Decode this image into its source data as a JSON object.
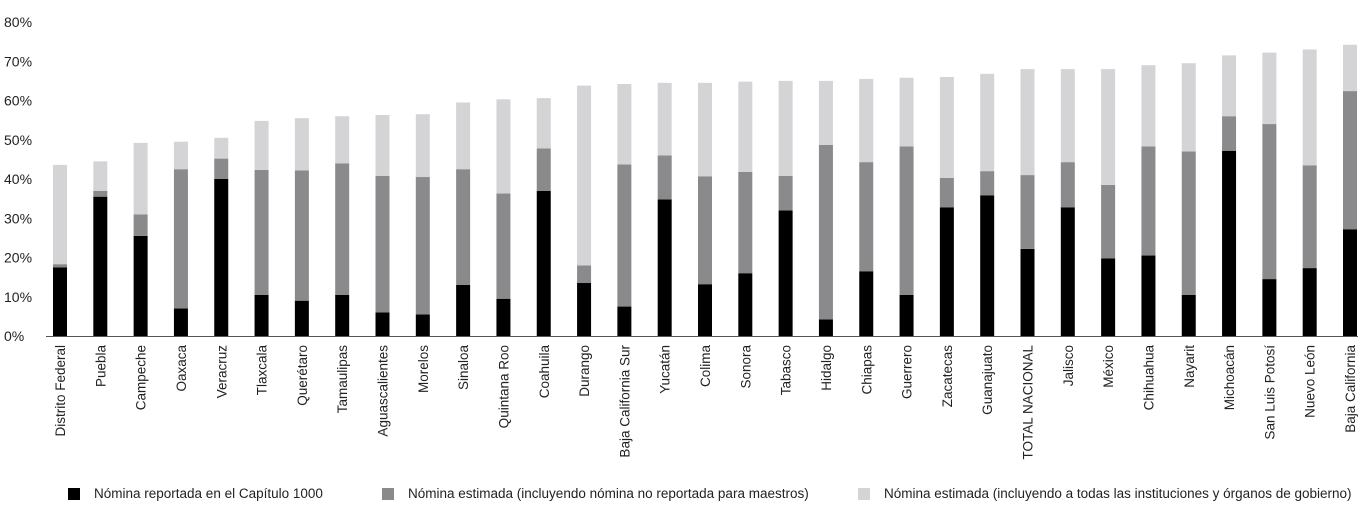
{
  "colors": {
    "reported": "#000000",
    "estimated_teachers": "#8a8a8c",
    "estimated_all": "#d4d4d6",
    "axis": "#555555"
  },
  "chart_data": {
    "type": "bar",
    "stacked": true,
    "title": "",
    "xlabel": "",
    "ylabel": "",
    "ylim": [
      0,
      80
    ],
    "y_ticks": [
      "0%",
      "10%",
      "20%",
      "30%",
      "40%",
      "50%",
      "60%",
      "70%",
      "80%"
    ],
    "grid": false,
    "legend_position": "bottom",
    "categories": [
      "Distrito Federal",
      "Puebla",
      "Campeche",
      "Oaxaca",
      "Veracruz",
      "Tlaxcala",
      "Querétaro",
      "Tamaulipas",
      "Aguascalientes",
      "Morelos",
      "Sinaloa",
      "Quintana Roo",
      "Coahuila",
      "Durango",
      "Baja California Sur",
      "Yucatán",
      "Colima",
      "Sonora",
      "Tabasco",
      "Hidalgo",
      "Chiapas",
      "Guerrero",
      "Zacatecas",
      "Guanajuato",
      "TOTAL NACIONAL",
      "Jalisco",
      "México",
      "Chihuahua",
      "Nayarit",
      "Michoacán",
      "San Luis Potosí",
      "Nuevo León",
      "Baja California"
    ],
    "series": [
      {
        "name": "Nómina reportada en el Capítulo 1000",
        "color_key": "reported",
        "values": [
          17.5,
          35.5,
          25.5,
          7.0,
          40.0,
          10.5,
          9.0,
          10.5,
          6.0,
          5.5,
          13.0,
          9.5,
          37.0,
          13.5,
          7.5,
          34.8,
          13.2,
          16.0,
          32.0,
          4.2,
          16.5,
          10.5,
          32.8,
          35.8,
          22.2,
          32.8,
          19.8,
          20.5,
          10.5,
          47.2,
          14.5,
          17.3,
          27.2
        ]
      },
      {
        "name": "Nómina estimada (incluyendo nómina no reportada para maestros)",
        "color_key": "estimated_teachers",
        "values": [
          0.8,
          1.5,
          5.5,
          35.5,
          5.2,
          31.8,
          33.2,
          33.5,
          34.8,
          35.0,
          29.5,
          26.8,
          10.8,
          4.5,
          36.2,
          11.2,
          27.5,
          25.8,
          8.8,
          44.5,
          27.8,
          37.8,
          7.5,
          6.2,
          18.8,
          11.5,
          18.7,
          27.8,
          36.5,
          8.8,
          39.5,
          26.2,
          35.2
        ]
      },
      {
        "name": "Nómina estimada (incluyendo a todas las instituciones y órganos de gobierno)",
        "color_key": "estimated_all",
        "values": [
          25.3,
          7.5,
          18.2,
          7.0,
          5.3,
          12.5,
          13.3,
          12.0,
          15.5,
          16.0,
          17.0,
          24.0,
          12.8,
          45.8,
          20.5,
          18.5,
          23.8,
          23.0,
          24.2,
          16.3,
          21.2,
          17.5,
          25.7,
          24.8,
          27.0,
          23.7,
          29.5,
          20.7,
          22.5,
          15.5,
          18.2,
          29.5,
          11.8
        ]
      }
    ]
  }
}
